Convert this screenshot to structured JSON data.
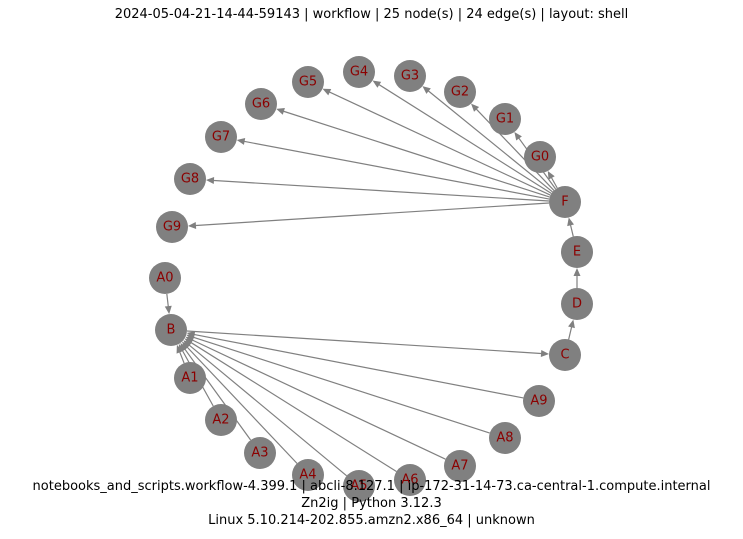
{
  "header": {
    "title": "2024-05-04-21-14-44-59143 | workflow | 25 node(s) | 24 edge(s) | layout: shell"
  },
  "footer": {
    "line1": "notebooks_and_scripts.workflow-4.399.1 | abcli-8.127.1 | ip-172-31-14-73.ca-central-1.compute.internal",
    "line2": "Zn2ig | Python 3.12.3",
    "line3": "Linux 5.10.214-202.855.amzn2.x86_64 | unknown"
  },
  "graph": {
    "node_color": "#808080",
    "label_color": "#8b0000",
    "edge_color": "#808080",
    "nodes": [
      "A0",
      "B",
      "A1",
      "A2",
      "A3",
      "A4",
      "A5",
      "A6",
      "A7",
      "A8",
      "A9",
      "C",
      "D",
      "E",
      "F",
      "G0",
      "G1",
      "G2",
      "G3",
      "G4",
      "G5",
      "G6",
      "G7",
      "G8",
      "G9"
    ],
    "edges": [
      [
        "A0",
        "B"
      ],
      [
        "A1",
        "B"
      ],
      [
        "A2",
        "B"
      ],
      [
        "A3",
        "B"
      ],
      [
        "A4",
        "B"
      ],
      [
        "A5",
        "B"
      ],
      [
        "A6",
        "B"
      ],
      [
        "A7",
        "B"
      ],
      [
        "A8",
        "B"
      ],
      [
        "A9",
        "B"
      ],
      [
        "B",
        "C"
      ],
      [
        "C",
        "D"
      ],
      [
        "D",
        "E"
      ],
      [
        "E",
        "F"
      ],
      [
        "F",
        "G0"
      ],
      [
        "F",
        "G1"
      ],
      [
        "F",
        "G2"
      ],
      [
        "F",
        "G3"
      ],
      [
        "F",
        "G4"
      ],
      [
        "F",
        "G5"
      ],
      [
        "F",
        "G6"
      ],
      [
        "F",
        "G7"
      ],
      [
        "F",
        "G8"
      ],
      [
        "F",
        "G9"
      ]
    ]
  }
}
